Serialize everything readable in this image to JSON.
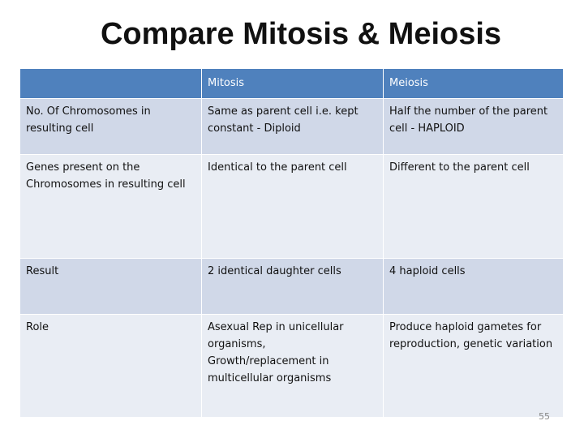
{
  "title": "Compare Mitosis & Meiosis",
  "table": {
    "headers": [
      "",
      "Mitosis",
      "Meiosis"
    ],
    "rows": [
      [
        "No. Of Chromosomes in resulting cell",
        "Same as parent cell i.e. kept constant - Diploid",
        "Half  the number of the parent cell - HAPLOID"
      ],
      [
        "Genes present on the Chromosomes in resulting cell",
        "Identical to the parent cell",
        "Different to the parent cell"
      ],
      [
        "Result",
        "2 identical daughter cells",
        "4 haploid cells"
      ],
      [
        "Role",
        "Asexual Rep in unicellular organisms, Growth/replacement in multicellular organisms",
        "Produce haploid gametes for reproduction, genetic variation"
      ]
    ]
  },
  "slide_number": "55",
  "colors": {
    "header_bg": "#4f81bd",
    "row_odd_bg": "#d0d8e8",
    "row_even_bg": "#e9edf4"
  }
}
